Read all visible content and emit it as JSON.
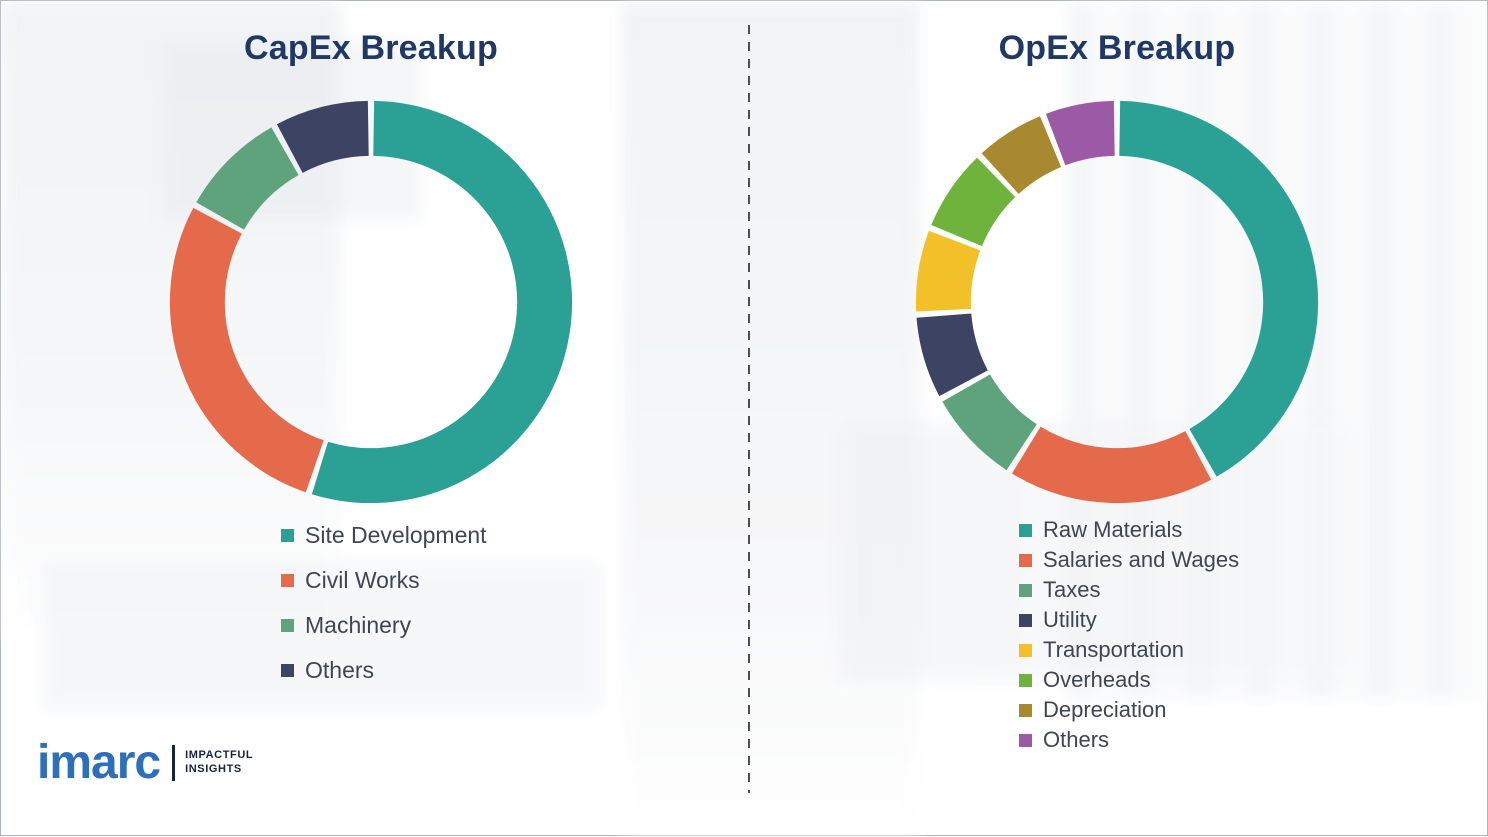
{
  "chart_data": [
    {
      "type": "pie",
      "variant": "donut",
      "title": "CapEx Breakup",
      "labels": [
        "Site Development",
        "Civil Works",
        "Machinery",
        "Others"
      ],
      "values": [
        55,
        28,
        9,
        8
      ],
      "colors": [
        "#2ba196",
        "#e56a4b",
        "#5fa37d",
        "#3d4463"
      ],
      "legend_position": "below-left",
      "data_labels": "none"
    },
    {
      "type": "pie",
      "variant": "donut",
      "title": "OpEx Breakup",
      "labels": [
        "Raw Materials",
        "Salaries and Wages",
        "Taxes",
        "Utility",
        "Transportation",
        "Overheads",
        "Depreciation",
        "Others"
      ],
      "values": [
        42,
        17,
        8,
        7,
        7,
        7,
        6,
        6
      ],
      "colors": [
        "#2ba196",
        "#e56a4b",
        "#5fa37d",
        "#3d4463",
        "#f2c029",
        "#6fb33d",
        "#a8892f",
        "#9c59a5"
      ],
      "legend_position": "below-left",
      "data_labels": "none"
    }
  ],
  "logo": {
    "brand": "imarc",
    "tagline": [
      "IMPACTFUL",
      "INSIGHTS"
    ]
  }
}
